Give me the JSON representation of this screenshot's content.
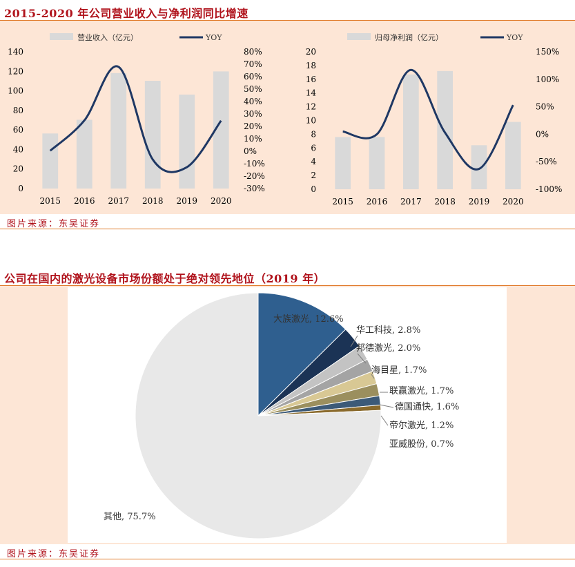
{
  "section1": {
    "title": "2015-2020 年公司营业收入与净利润同比增速",
    "source": "图片来源：东吴证券"
  },
  "section2": {
    "title": "公司在国内的激光设备市场份额处于绝对领先地位（2019 年）",
    "source": "图片来源：东吴证券"
  },
  "colors": {
    "bar": "#d9d9d9",
    "line": "#1f3864",
    "panel": "#fde6d6",
    "title": "#b0131c",
    "rule": "#e07a2a"
  },
  "chart_data": [
    {
      "type": "bar",
      "categories": [
        "2015",
        "2016",
        "2017",
        "2018",
        "2019",
        "2020"
      ],
      "series": [
        {
          "name": "营业收入（亿元）",
          "type": "bar",
          "axis": "left",
          "values": [
            56.4,
            70.4,
            118.2,
            110.3,
            96.2,
            119.9
          ]
        },
        {
          "name": "YOY",
          "type": "line",
          "axis": "right",
          "values": [
            0.4,
            24.8,
            67.9,
            -6.6,
            -12.8,
            24.6
          ]
        }
      ],
      "ylim": [
        0,
        140
      ],
      "yticks": [
        0,
        20,
        40,
        60,
        80,
        100,
        120,
        140
      ],
      "y2lim": [
        -30,
        80
      ],
      "y2ticks": [
        "-30%",
        "-20%",
        "-10%",
        "0%",
        "10%",
        "20%",
        "30%",
        "40%",
        "50%",
        "60%",
        "70%",
        "80%"
      ],
      "legend": "top"
    },
    {
      "type": "bar",
      "categories": [
        "2015",
        "2016",
        "2017",
        "2018",
        "2019",
        "2020"
      ],
      "series": [
        {
          "name": "归母净利润（亿元）",
          "type": "bar",
          "axis": "left",
          "values": [
            7.6,
            7.6,
            16.7,
            17.2,
            6.4,
            9.8
          ]
        },
        {
          "name": "YOY",
          "type": "line",
          "axis": "right",
          "values": [
            5,
            0,
            117,
            3,
            -63,
            53
          ]
        }
      ],
      "ylim": [
        0,
        20
      ],
      "yticks": [
        0,
        2,
        4,
        6,
        8,
        10,
        12,
        14,
        16,
        18,
        20
      ],
      "y2lim": [
        -100,
        150
      ],
      "y2ticks": [
        "-100%",
        "-50%",
        "0%",
        "50%",
        "100%",
        "150%"
      ],
      "legend": "top"
    },
    {
      "type": "pie",
      "slices": [
        {
          "label": "大族激光",
          "value": 12.6,
          "text": "大族激光, 12.6%",
          "color": "#2f5f8f"
        },
        {
          "label": "华工科技",
          "value": 2.8,
          "text": "华工科技, 2.8%",
          "color": "#1b3355"
        },
        {
          "label": "邦德激光",
          "value": 2.0,
          "text": "邦德激光, 2.0%",
          "color": "#c3c3c3"
        },
        {
          "label": "海目星",
          "value": 1.7,
          "text": "海目星, 1.7%",
          "color": "#a4a4a4"
        },
        {
          "label": "联赢激光",
          "value": 1.7,
          "text": "联赢激光, 1.7%",
          "color": "#d8c894"
        },
        {
          "label": "德国通快",
          "value": 1.6,
          "text": "德国通快, 1.6%",
          "color": "#9b8f5e"
        },
        {
          "label": "帝尔激光",
          "value": 1.2,
          "text": "帝尔激光, 1.2%",
          "color": "#3c5a78"
        },
        {
          "label": "亚威股份",
          "value": 0.7,
          "text": "亚威股份, 0.7%",
          "color": "#8a6a2c"
        },
        {
          "label": "其他",
          "value": 75.7,
          "text": "其他, 75.7%",
          "color": "#e8e8e8"
        }
      ]
    }
  ]
}
